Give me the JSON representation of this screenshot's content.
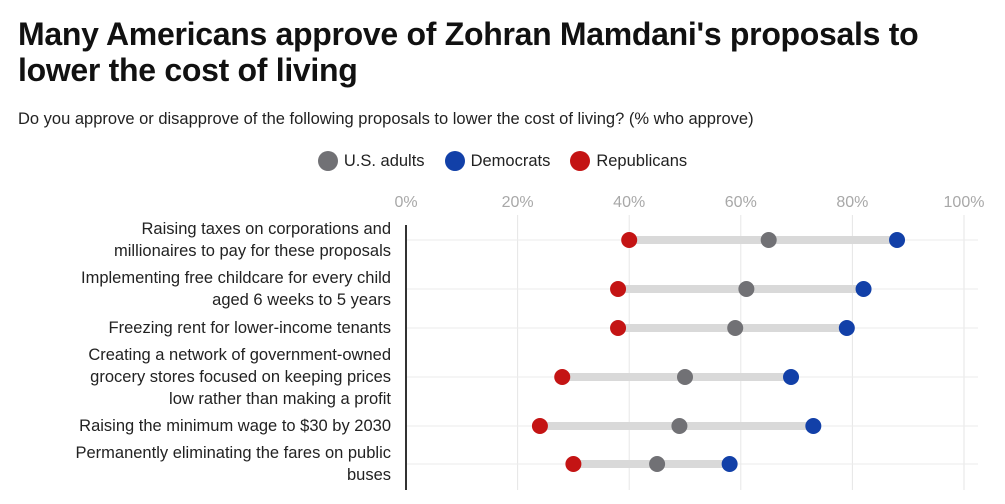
{
  "chart_data": {
    "type": "dot-range",
    "title": "Many Americans approve of Zohran Mamdani's proposals to lower the cost of living",
    "subtitle": "Do you approve or disapprove of the following proposals to lower the cost of living? (% who approve)",
    "xlim": [
      0,
      100
    ],
    "x_ticks": [
      "0%",
      "20%",
      "40%",
      "60%",
      "80%",
      "100%"
    ],
    "x_tick_values": [
      0,
      20,
      40,
      60,
      80,
      100
    ],
    "grid": true,
    "legend_position": "top-center",
    "series": [
      {
        "name": "U.S. adults",
        "color": "#717175",
        "values": [
          65,
          61,
          59,
          50,
          49,
          45
        ]
      },
      {
        "name": "Democrats",
        "color": "#1240a8",
        "values": [
          88,
          82,
          79,
          69,
          73,
          58
        ]
      },
      {
        "name": "Republicans",
        "color": "#c41414",
        "values": [
          40,
          38,
          38,
          28,
          24,
          30
        ]
      }
    ],
    "categories": [
      [
        "Raising taxes on corporations and",
        "millionaires to pay for these proposals"
      ],
      [
        "Implementing free childcare for every child",
        "aged 6 weeks to 5 years"
      ],
      [
        "Freezing rent for lower-income tenants"
      ],
      [
        "Creating a network of government-owned",
        "grocery stores focused on keeping prices",
        "low rather than making a profit"
      ],
      [
        "Raising the minimum wage to $30 by 2030"
      ],
      [
        "Permanently eliminating the fares on public",
        "buses"
      ]
    ]
  }
}
